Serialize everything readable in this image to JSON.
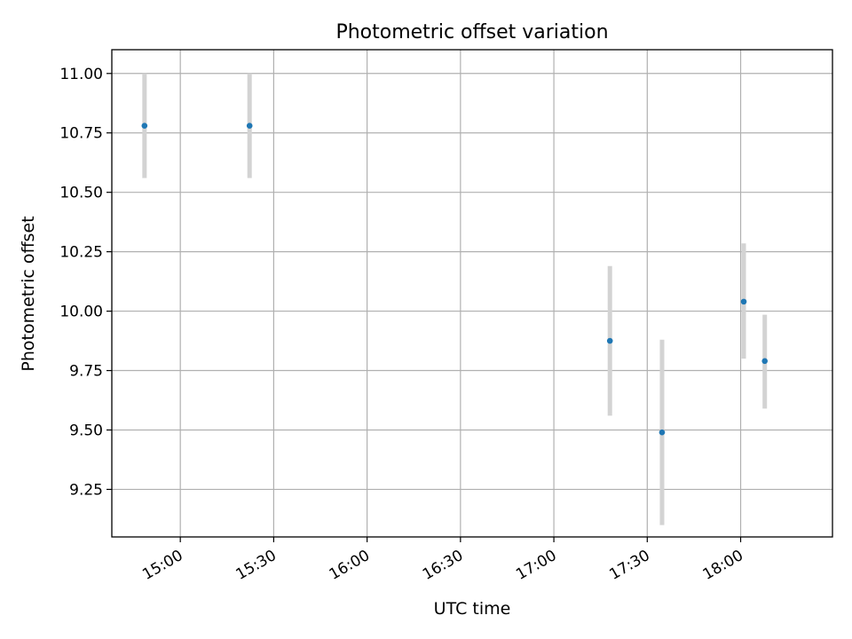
{
  "chart_data": {
    "type": "scatter",
    "title": "Photometric offset variation",
    "xlabel": "UTC time",
    "ylabel": "Photometric offset",
    "xlim": [
      "14:38:00",
      "18:29:30"
    ],
    "ylim": [
      9.05,
      11.1
    ],
    "xticks": [
      "15:00",
      "15:30",
      "16:00",
      "16:30",
      "17:00",
      "17:30",
      "18:00"
    ],
    "yticks": [
      9.25,
      9.5,
      9.75,
      10.0,
      10.25,
      10.5,
      10.75,
      11.0
    ],
    "grid": true,
    "points": [
      {
        "x": "14:48:30",
        "y": 10.78,
        "ylow": 10.56,
        "yhigh": 11.0
      },
      {
        "x": "15:22:15",
        "y": 10.78,
        "ylow": 10.56,
        "yhigh": 11.0
      },
      {
        "x": "17:18:00",
        "y": 9.875,
        "ylow": 9.56,
        "yhigh": 10.19
      },
      {
        "x": "17:34:45",
        "y": 9.49,
        "ylow": 9.1,
        "yhigh": 9.88
      },
      {
        "x": "18:01:00",
        "y": 10.04,
        "ylow": 9.8,
        "yhigh": 10.285
      },
      {
        "x": "18:07:45",
        "y": 9.79,
        "ylow": 9.59,
        "yhigh": 9.985
      }
    ],
    "colors": {
      "point": "#1f77b4",
      "errorbar": "#d3d3d3",
      "grid": "#b0b0b0"
    }
  }
}
